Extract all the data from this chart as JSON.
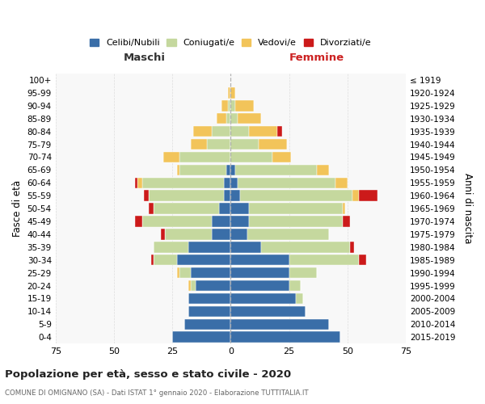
{
  "age_groups": [
    "0-4",
    "5-9",
    "10-14",
    "15-19",
    "20-24",
    "25-29",
    "30-34",
    "35-39",
    "40-44",
    "45-49",
    "50-54",
    "55-59",
    "60-64",
    "65-69",
    "70-74",
    "75-79",
    "80-84",
    "85-89",
    "90-94",
    "95-99",
    "100+"
  ],
  "birth_years": [
    "2015-2019",
    "2010-2014",
    "2005-2009",
    "2000-2004",
    "1995-1999",
    "1990-1994",
    "1985-1989",
    "1980-1984",
    "1975-1979",
    "1970-1974",
    "1965-1969",
    "1960-1964",
    "1955-1959",
    "1950-1954",
    "1945-1949",
    "1940-1944",
    "1935-1939",
    "1930-1934",
    "1925-1929",
    "1920-1924",
    "≤ 1919"
  ],
  "colors": {
    "celibi": "#3a6ea8",
    "coniugati": "#c5d89e",
    "vedovi": "#f2c45a",
    "divorziati": "#cc1a1a"
  },
  "maschi": {
    "celibi": [
      25,
      20,
      18,
      18,
      15,
      17,
      23,
      18,
      8,
      8,
      5,
      3,
      3,
      2,
      0,
      0,
      0,
      0,
      0,
      0,
      0
    ],
    "coniugati": [
      0,
      0,
      0,
      0,
      2,
      5,
      10,
      15,
      20,
      30,
      28,
      32,
      35,
      20,
      22,
      10,
      8,
      2,
      1,
      0,
      0
    ],
    "vedovi": [
      0,
      0,
      0,
      0,
      1,
      1,
      0,
      0,
      0,
      0,
      0,
      0,
      2,
      1,
      7,
      7,
      8,
      4,
      3,
      1,
      0
    ],
    "divorziati": [
      0,
      0,
      0,
      0,
      0,
      0,
      1,
      0,
      2,
      3,
      2,
      2,
      1,
      0,
      0,
      0,
      0,
      0,
      0,
      0,
      0
    ]
  },
  "femmine": {
    "celibi": [
      47,
      42,
      32,
      28,
      25,
      25,
      25,
      13,
      7,
      8,
      8,
      4,
      3,
      2,
      0,
      0,
      0,
      0,
      0,
      0,
      0
    ],
    "coniugati": [
      0,
      0,
      0,
      3,
      5,
      12,
      30,
      38,
      35,
      40,
      40,
      48,
      42,
      35,
      18,
      12,
      8,
      3,
      2,
      0,
      0
    ],
    "vedovi": [
      0,
      0,
      0,
      0,
      0,
      0,
      0,
      0,
      0,
      0,
      1,
      3,
      5,
      5,
      8,
      12,
      12,
      10,
      8,
      2,
      0
    ],
    "divorziati": [
      0,
      0,
      0,
      0,
      0,
      0,
      3,
      2,
      0,
      3,
      0,
      8,
      0,
      0,
      0,
      0,
      2,
      0,
      0,
      0,
      0
    ]
  },
  "xlim": 75,
  "title": "Popolazione per età, sesso e stato civile - 2020",
  "subtitle": "COMUNE DI OMIGNANO (SA) - Dati ISTAT 1° gennaio 2020 - Elaborazione TUTTITALIA.IT",
  "ylabel_left": "Fasce di età",
  "ylabel_right": "Anni di nascita",
  "xlabel_maschi": "Maschi",
  "xlabel_femmine": "Femmine",
  "legend_labels": [
    "Celibi/Nubili",
    "Coniugati/e",
    "Vedovi/e",
    "Divorziati/e"
  ]
}
